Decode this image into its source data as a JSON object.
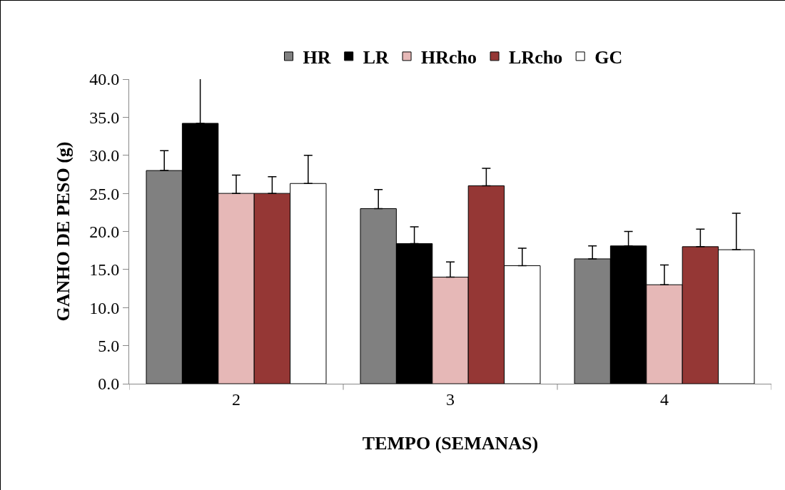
{
  "chart_data": {
    "type": "bar",
    "xlabel": "TEMPO (SEMANAS)",
    "ylabel": "GANHO DE PESO (g)",
    "categories": [
      "2",
      "3",
      "4"
    ],
    "series": [
      {
        "name": "HR",
        "color": "#808080",
        "values": [
          28.0,
          23.0,
          16.4
        ],
        "errors": [
          [
            28.0,
            30.6
          ],
          [
            23.0,
            25.5
          ],
          [
            16.4,
            18.1
          ]
        ]
      },
      {
        "name": "LR",
        "color": "#000000",
        "values": [
          34.2,
          18.4,
          18.1
        ],
        "errors": [
          [
            34.2,
            40.1
          ],
          [
            18.4,
            20.6
          ],
          [
            18.1,
            20.0
          ]
        ]
      },
      {
        "name": "HRcho",
        "color": "#e6b8b7",
        "values": [
          25.0,
          14.0,
          13.0
        ],
        "errors": [
          [
            25.0,
            27.4
          ],
          [
            14.0,
            16.0
          ],
          [
            13.0,
            15.6
          ]
        ]
      },
      {
        "name": "LRcho",
        "color": "#953735",
        "values": [
          25.0,
          26.0,
          18.0
        ],
        "errors": [
          [
            25.0,
            27.2
          ],
          [
            26.0,
            28.3
          ],
          [
            18.0,
            20.3
          ]
        ]
      },
      {
        "name": "GC",
        "color": "#ffffff",
        "values": [
          26.3,
          15.5,
          17.6
        ],
        "errors": [
          [
            26.3,
            30.0
          ],
          [
            15.5,
            17.8
          ],
          [
            17.6,
            22.4
          ]
        ]
      }
    ],
    "ylim": [
      0,
      40
    ],
    "yticks": [
      {
        "value": 0,
        "label": "0.0"
      },
      {
        "value": 5,
        "label": "5.0"
      },
      {
        "value": 10,
        "label": "10.0"
      },
      {
        "value": 15,
        "label": "15.0"
      },
      {
        "value": 20,
        "label": "20.0"
      },
      {
        "value": 25,
        "label": "25.0"
      },
      {
        "value": 30,
        "label": "30.0"
      },
      {
        "value": 35,
        "label": "35.0"
      },
      {
        "value": 40,
        "label": "40.0"
      }
    ],
    "grid": false,
    "legend": "top"
  }
}
